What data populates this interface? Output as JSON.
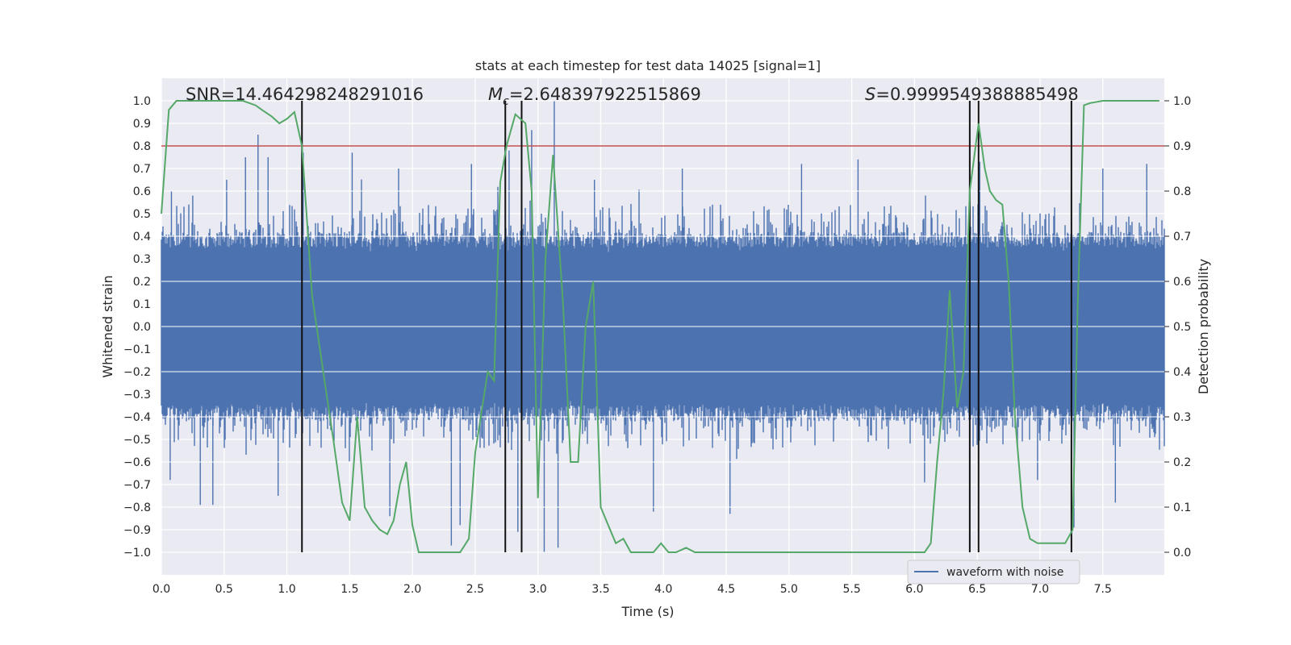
{
  "chart_data": {
    "type": "line",
    "title": "stats at each timestep for test data 14025 [signal=1]",
    "xlabel": "Time (s)",
    "ylabel": "Whitened strain",
    "y2label": "Detection probability",
    "xlim": [
      0.0,
      7.99
    ],
    "ylim": [
      -1.1,
      1.1
    ],
    "y2lim": [
      -0.05,
      1.05
    ],
    "xticks": [
      "0.0",
      "0.5",
      "1.0",
      "1.5",
      "2.0",
      "2.5",
      "3.0",
      "3.5",
      "4.0",
      "4.5",
      "5.0",
      "5.5",
      "6.0",
      "6.5",
      "7.0",
      "7.5"
    ],
    "yticks": [
      "1.0",
      "0.9",
      "0.8",
      "0.7",
      "0.6",
      "0.5",
      "0.4",
      "0.3",
      "0.2",
      "0.1",
      "0.0",
      "−0.1",
      "−0.2",
      "−0.3",
      "−0.4",
      "−0.5",
      "−0.6",
      "−0.7",
      "−0.8",
      "−0.9",
      "−1.0"
    ],
    "y2ticks": [
      "1.0",
      "0.9",
      "0.8",
      "0.7",
      "0.6",
      "0.5",
      "0.4",
      "0.3",
      "0.2",
      "0.1",
      "0.0"
    ],
    "grid": true,
    "legend": {
      "position": "lower-right",
      "entries": [
        "waveform with noise"
      ]
    },
    "annotations": {
      "snr": "SNR=14.464298248291016",
      "mc_symbol": "M",
      "mc_sub": "c",
      "mc_value": "=2.648397922515869",
      "s_symbol": "S",
      "s_value": "=0.9999549388885498"
    },
    "threshold": {
      "value": 0.9,
      "axis": "right",
      "color": "#c44e52"
    },
    "markers_x": [
      1.12,
      2.74,
      2.87,
      6.44,
      6.51,
      7.25
    ],
    "waveform": {
      "name": "waveform with noise",
      "color": "#4c72b0",
      "t_start": 0.0,
      "t_end": 7.99,
      "peaks_pos": [
        [
          0.08,
          0.6
        ],
        [
          0.25,
          0.58
        ],
        [
          0.52,
          0.65
        ],
        [
          0.67,
          0.75
        ],
        [
          0.77,
          0.85
        ],
        [
          0.85,
          0.75
        ],
        [
          1.13,
          0.77
        ],
        [
          1.52,
          0.77
        ],
        [
          1.89,
          0.7
        ],
        [
          2.47,
          0.72
        ],
        [
          2.77,
          0.78
        ],
        [
          2.95,
          0.87
        ],
        [
          3.13,
          1.0
        ],
        [
          3.45,
          0.65
        ],
        [
          4.15,
          0.7
        ],
        [
          5.1,
          0.72
        ],
        [
          5.55,
          0.74
        ],
        [
          6.52,
          0.73
        ],
        [
          7.5,
          0.7
        ],
        [
          7.85,
          0.72
        ]
      ],
      "peaks_neg": [
        [
          0.07,
          -0.68
        ],
        [
          0.31,
          -0.79
        ],
        [
          0.41,
          -0.79
        ],
        [
          0.93,
          -0.75
        ],
        [
          1.82,
          -0.84
        ],
        [
          2.31,
          -0.97
        ],
        [
          2.38,
          -0.88
        ],
        [
          2.84,
          -0.91
        ],
        [
          3.05,
          -1.0
        ],
        [
          3.16,
          -0.98
        ],
        [
          3.92,
          -0.82
        ],
        [
          4.53,
          -0.83
        ],
        [
          6.08,
          -0.69
        ],
        [
          6.98,
          -0.68
        ],
        [
          7.27,
          -0.89
        ],
        [
          7.6,
          -0.78
        ]
      ]
    },
    "probability": {
      "name": "detection probability",
      "color": "#55a868",
      "x": [
        0.0,
        0.06,
        0.12,
        0.2,
        0.3,
        0.4,
        0.5,
        0.6,
        0.65,
        0.7,
        0.75,
        0.8,
        0.88,
        0.94,
        1.0,
        1.06,
        1.12,
        1.2,
        1.3,
        1.37,
        1.44,
        1.5,
        1.56,
        1.62,
        1.68,
        1.74,
        1.8,
        1.85,
        1.9,
        1.95,
        2.0,
        2.05,
        2.1,
        2.2,
        2.3,
        2.38,
        2.45,
        2.5,
        2.6,
        2.65,
        2.7,
        2.75,
        2.82,
        2.9,
        2.95,
        3.0,
        3.06,
        3.12,
        3.2,
        3.26,
        3.32,
        3.38,
        3.44,
        3.5,
        3.56,
        3.62,
        3.68,
        3.74,
        3.8,
        3.86,
        3.92,
        3.98,
        4.04,
        4.1,
        4.18,
        4.25,
        4.4,
        4.6,
        5.0,
        5.2,
        5.5,
        6.0,
        6.08,
        6.13,
        6.18,
        6.23,
        6.28,
        6.34,
        6.39,
        6.44,
        6.51,
        6.56,
        6.6,
        6.65,
        6.7,
        6.75,
        6.8,
        6.86,
        6.92,
        6.98,
        7.04,
        7.1,
        7.15,
        7.2,
        7.26,
        7.3,
        7.35,
        7.4,
        7.5,
        7.6,
        7.8,
        7.95
      ],
      "y": [
        0.75,
        0.98,
        1.0,
        1.0,
        1.0,
        1.0,
        1.0,
        1.0,
        1.0,
        0.995,
        0.99,
        0.98,
        0.965,
        0.95,
        0.96,
        0.975,
        0.9,
        0.57,
        0.38,
        0.25,
        0.11,
        0.07,
        0.3,
        0.1,
        0.07,
        0.05,
        0.04,
        0.07,
        0.15,
        0.2,
        0.06,
        0.0,
        0.0,
        0.0,
        0.0,
        0.0,
        0.03,
        0.22,
        0.4,
        0.38,
        0.82,
        0.9,
        0.97,
        0.95,
        0.8,
        0.12,
        0.65,
        0.88,
        0.55,
        0.2,
        0.2,
        0.5,
        0.6,
        0.1,
        0.06,
        0.02,
        0.03,
        0.0,
        0.0,
        0.0,
        0.0,
        0.02,
        0.0,
        0.0,
        0.01,
        0.0,
        0.0,
        0.0,
        0.0,
        0.0,
        0.0,
        0.0,
        0.0,
        0.02,
        0.2,
        0.35,
        0.58,
        0.32,
        0.4,
        0.8,
        0.95,
        0.85,
        0.8,
        0.78,
        0.77,
        0.6,
        0.3,
        0.1,
        0.03,
        0.02,
        0.02,
        0.02,
        0.02,
        0.02,
        0.05,
        0.55,
        0.99,
        0.995,
        1.0,
        1.0,
        1.0,
        1.0
      ]
    }
  }
}
